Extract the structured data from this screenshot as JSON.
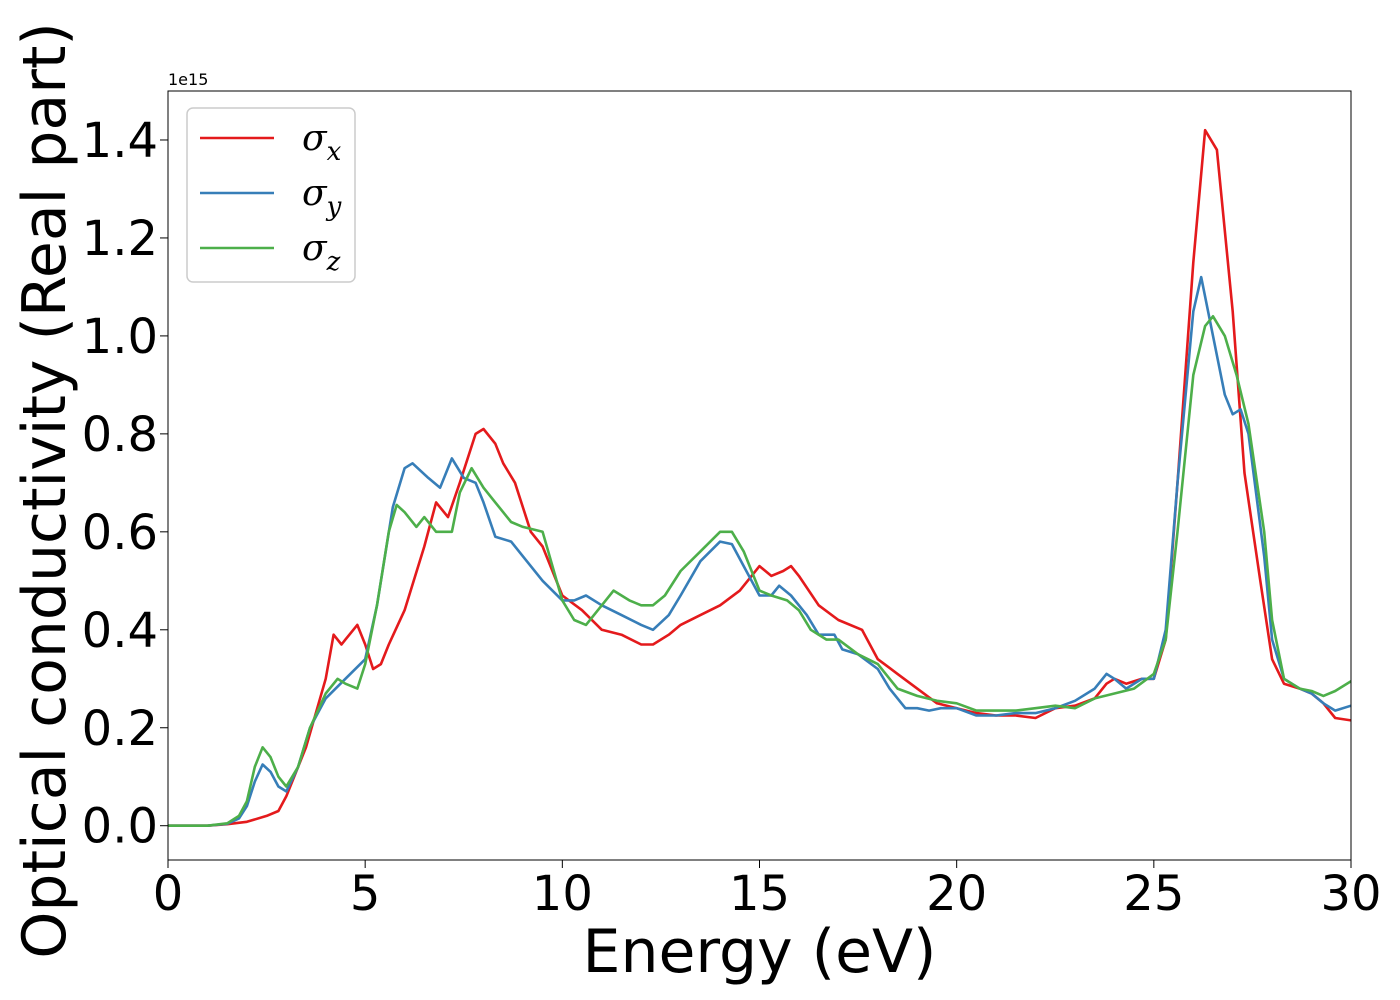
{
  "chart_data": {
    "type": "line",
    "title": "",
    "xlabel": "Energy (eV)",
    "ylabel": "Optical conductivity (Real part)",
    "y_offset_label": "1e15",
    "xlim": [
      0,
      30
    ],
    "ylim": [
      -0.07,
      1.5
    ],
    "xticks": [
      0,
      5,
      10,
      15,
      20,
      25,
      30
    ],
    "xtick_labels": [
      "0",
      "5",
      "10",
      "15",
      "20",
      "25",
      "30"
    ],
    "yticks": [
      0.0,
      0.2,
      0.4,
      0.6,
      0.8,
      1.0,
      1.2,
      1.4
    ],
    "ytick_labels": [
      "0.0",
      "0.2",
      "0.4",
      "0.6",
      "0.8",
      "1.0",
      "1.2",
      "1.4"
    ],
    "grid": false,
    "legend_position": "top-left",
    "series": [
      {
        "name": "σx",
        "symbol": "σ",
        "subscript": "x",
        "color": "#e41a1c",
        "points": [
          [
            0,
            0
          ],
          [
            1,
            0
          ],
          [
            1.5,
            0.003
          ],
          [
            2,
            0.008
          ],
          [
            2.5,
            0.02
          ],
          [
            2.8,
            0.03
          ],
          [
            3,
            0.06
          ],
          [
            3.5,
            0.16
          ],
          [
            4,
            0.3
          ],
          [
            4.2,
            0.39
          ],
          [
            4.4,
            0.37
          ],
          [
            4.5,
            0.38
          ],
          [
            4.8,
            0.41
          ],
          [
            5,
            0.37
          ],
          [
            5.2,
            0.32
          ],
          [
            5.4,
            0.33
          ],
          [
            5.6,
            0.37
          ],
          [
            6,
            0.44
          ],
          [
            6.5,
            0.57
          ],
          [
            6.8,
            0.66
          ],
          [
            7.1,
            0.63
          ],
          [
            7.4,
            0.7
          ],
          [
            7.8,
            0.8
          ],
          [
            8,
            0.81
          ],
          [
            8.3,
            0.78
          ],
          [
            8.5,
            0.74
          ],
          [
            8.8,
            0.7
          ],
          [
            9.2,
            0.6
          ],
          [
            9.5,
            0.57
          ],
          [
            10,
            0.47
          ],
          [
            10.5,
            0.44
          ],
          [
            11,
            0.4
          ],
          [
            11.5,
            0.39
          ],
          [
            12,
            0.37
          ],
          [
            12.3,
            0.37
          ],
          [
            12.7,
            0.39
          ],
          [
            13,
            0.41
          ],
          [
            13.5,
            0.43
          ],
          [
            14,
            0.45
          ],
          [
            14.5,
            0.48
          ],
          [
            14.8,
            0.51
          ],
          [
            15,
            0.53
          ],
          [
            15.3,
            0.51
          ],
          [
            15.6,
            0.52
          ],
          [
            15.8,
            0.53
          ],
          [
            16,
            0.51
          ],
          [
            16.5,
            0.45
          ],
          [
            17,
            0.42
          ],
          [
            17.6,
            0.4
          ],
          [
            18,
            0.34
          ],
          [
            18.5,
            0.31
          ],
          [
            19,
            0.28
          ],
          [
            19.5,
            0.25
          ],
          [
            20,
            0.24
          ],
          [
            20.5,
            0.23
          ],
          [
            21,
            0.225
          ],
          [
            21.5,
            0.225
          ],
          [
            22,
            0.22
          ],
          [
            22.5,
            0.24
          ],
          [
            23,
            0.245
          ],
          [
            23.5,
            0.26
          ],
          [
            23.8,
            0.29
          ],
          [
            24,
            0.3
          ],
          [
            24.3,
            0.29
          ],
          [
            24.7,
            0.3
          ],
          [
            25,
            0.3
          ],
          [
            25.3,
            0.38
          ],
          [
            25.6,
            0.7
          ],
          [
            26,
            1.15
          ],
          [
            26.3,
            1.42
          ],
          [
            26.6,
            1.38
          ],
          [
            27,
            1.05
          ],
          [
            27.3,
            0.72
          ],
          [
            27.7,
            0.5
          ],
          [
            28,
            0.34
          ],
          [
            28.3,
            0.29
          ],
          [
            28.7,
            0.28
          ],
          [
            29,
            0.27
          ],
          [
            29.3,
            0.25
          ],
          [
            29.6,
            0.22
          ],
          [
            30,
            0.215
          ]
        ]
      },
      {
        "name": "σy",
        "symbol": "σ",
        "subscript": "y",
        "color": "#377eb8",
        "points": [
          [
            0,
            0
          ],
          [
            1,
            0
          ],
          [
            1.5,
            0.004
          ],
          [
            1.8,
            0.015
          ],
          [
            2,
            0.04
          ],
          [
            2.2,
            0.09
          ],
          [
            2.4,
            0.125
          ],
          [
            2.6,
            0.11
          ],
          [
            2.8,
            0.08
          ],
          [
            3,
            0.07
          ],
          [
            3.3,
            0.12
          ],
          [
            3.6,
            0.2
          ],
          [
            4,
            0.26
          ],
          [
            4.5,
            0.3
          ],
          [
            5,
            0.34
          ],
          [
            5.3,
            0.45
          ],
          [
            5.7,
            0.65
          ],
          [
            6,
            0.73
          ],
          [
            6.2,
            0.74
          ],
          [
            6.6,
            0.71
          ],
          [
            6.9,
            0.69
          ],
          [
            7.2,
            0.75
          ],
          [
            7.5,
            0.71
          ],
          [
            7.8,
            0.7
          ],
          [
            8,
            0.66
          ],
          [
            8.3,
            0.59
          ],
          [
            8.7,
            0.58
          ],
          [
            9,
            0.55
          ],
          [
            9.5,
            0.5
          ],
          [
            10,
            0.46
          ],
          [
            10.3,
            0.46
          ],
          [
            10.6,
            0.47
          ],
          [
            11,
            0.45
          ],
          [
            11.5,
            0.43
          ],
          [
            12,
            0.41
          ],
          [
            12.3,
            0.4
          ],
          [
            12.7,
            0.43
          ],
          [
            13,
            0.47
          ],
          [
            13.5,
            0.54
          ],
          [
            14,
            0.58
          ],
          [
            14.3,
            0.575
          ],
          [
            14.6,
            0.53
          ],
          [
            15,
            0.47
          ],
          [
            15.3,
            0.47
          ],
          [
            15.5,
            0.49
          ],
          [
            15.8,
            0.47
          ],
          [
            16.2,
            0.43
          ],
          [
            16.5,
            0.39
          ],
          [
            16.9,
            0.39
          ],
          [
            17.1,
            0.36
          ],
          [
            17.5,
            0.35
          ],
          [
            18,
            0.32
          ],
          [
            18.3,
            0.28
          ],
          [
            18.7,
            0.24
          ],
          [
            19,
            0.24
          ],
          [
            19.3,
            0.235
          ],
          [
            19.6,
            0.24
          ],
          [
            20,
            0.24
          ],
          [
            20.5,
            0.225
          ],
          [
            21,
            0.225
          ],
          [
            21.5,
            0.23
          ],
          [
            22,
            0.23
          ],
          [
            22.5,
            0.24
          ],
          [
            23,
            0.255
          ],
          [
            23.5,
            0.28
          ],
          [
            23.8,
            0.31
          ],
          [
            24,
            0.3
          ],
          [
            24.3,
            0.28
          ],
          [
            24.7,
            0.3
          ],
          [
            25,
            0.3
          ],
          [
            25.3,
            0.4
          ],
          [
            25.6,
            0.7
          ],
          [
            26,
            1.05
          ],
          [
            26.2,
            1.12
          ],
          [
            26.5,
            1.0
          ],
          [
            26.8,
            0.88
          ],
          [
            27,
            0.84
          ],
          [
            27.2,
            0.85
          ],
          [
            27.4,
            0.8
          ],
          [
            27.8,
            0.55
          ],
          [
            28,
            0.38
          ],
          [
            28.3,
            0.3
          ],
          [
            28.7,
            0.28
          ],
          [
            29,
            0.27
          ],
          [
            29.3,
            0.25
          ],
          [
            29.6,
            0.235
          ],
          [
            30,
            0.245
          ]
        ]
      },
      {
        "name": "σz",
        "symbol": "σ",
        "subscript": "z",
        "color": "#4daf4a",
        "points": [
          [
            0,
            0
          ],
          [
            1,
            0
          ],
          [
            1.5,
            0.005
          ],
          [
            1.8,
            0.02
          ],
          [
            2,
            0.05
          ],
          [
            2.2,
            0.12
          ],
          [
            2.4,
            0.16
          ],
          [
            2.6,
            0.14
          ],
          [
            2.8,
            0.1
          ],
          [
            3,
            0.08
          ],
          [
            3.3,
            0.12
          ],
          [
            3.6,
            0.2
          ],
          [
            4,
            0.27
          ],
          [
            4.3,
            0.3
          ],
          [
            4.5,
            0.29
          ],
          [
            4.8,
            0.28
          ],
          [
            5,
            0.33
          ],
          [
            5.3,
            0.45
          ],
          [
            5.6,
            0.6
          ],
          [
            5.8,
            0.655
          ],
          [
            6,
            0.64
          ],
          [
            6.3,
            0.61
          ],
          [
            6.5,
            0.63
          ],
          [
            6.8,
            0.6
          ],
          [
            7.2,
            0.6
          ],
          [
            7.4,
            0.68
          ],
          [
            7.7,
            0.73
          ],
          [
            8,
            0.69
          ],
          [
            8.3,
            0.66
          ],
          [
            8.7,
            0.62
          ],
          [
            9,
            0.61
          ],
          [
            9.5,
            0.6
          ],
          [
            10,
            0.46
          ],
          [
            10.3,
            0.42
          ],
          [
            10.6,
            0.41
          ],
          [
            11,
            0.45
          ],
          [
            11.3,
            0.48
          ],
          [
            11.7,
            0.46
          ],
          [
            12,
            0.45
          ],
          [
            12.3,
            0.45
          ],
          [
            12.6,
            0.47
          ],
          [
            13,
            0.52
          ],
          [
            13.5,
            0.56
          ],
          [
            14,
            0.6
          ],
          [
            14.3,
            0.6
          ],
          [
            14.6,
            0.56
          ],
          [
            15,
            0.48
          ],
          [
            15.3,
            0.47
          ],
          [
            15.7,
            0.46
          ],
          [
            16,
            0.44
          ],
          [
            16.3,
            0.4
          ],
          [
            16.7,
            0.38
          ],
          [
            17,
            0.38
          ],
          [
            17.5,
            0.35
          ],
          [
            18,
            0.33
          ],
          [
            18.5,
            0.28
          ],
          [
            19,
            0.265
          ],
          [
            19.5,
            0.255
          ],
          [
            20,
            0.25
          ],
          [
            20.5,
            0.235
          ],
          [
            21,
            0.235
          ],
          [
            21.5,
            0.235
          ],
          [
            22,
            0.24
          ],
          [
            22.5,
            0.245
          ],
          [
            23,
            0.24
          ],
          [
            23.5,
            0.26
          ],
          [
            24,
            0.27
          ],
          [
            24.5,
            0.28
          ],
          [
            25,
            0.31
          ],
          [
            25.3,
            0.38
          ],
          [
            25.6,
            0.6
          ],
          [
            26,
            0.92
          ],
          [
            26.3,
            1.02
          ],
          [
            26.5,
            1.04
          ],
          [
            26.8,
            1.0
          ],
          [
            27.1,
            0.92
          ],
          [
            27.4,
            0.82
          ],
          [
            27.8,
            0.6
          ],
          [
            28,
            0.42
          ],
          [
            28.3,
            0.3
          ],
          [
            28.7,
            0.28
          ],
          [
            29,
            0.275
          ],
          [
            29.3,
            0.265
          ],
          [
            29.6,
            0.275
          ],
          [
            30,
            0.295
          ]
        ]
      }
    ]
  }
}
